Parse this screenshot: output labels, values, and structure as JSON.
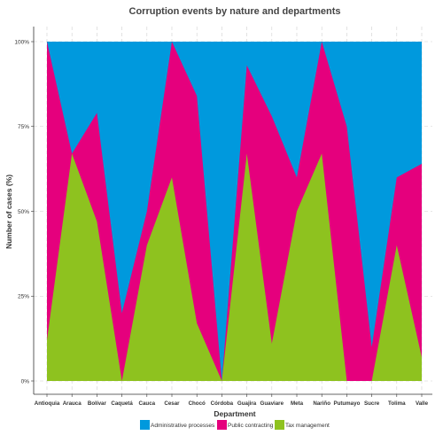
{
  "chart_data": {
    "type": "area",
    "title": "Corruption events by nature and departments",
    "xlabel": "Department",
    "ylabel": "Number of cases (%)",
    "stacked": true,
    "ylim": [
      0,
      100
    ],
    "y_ticks": [
      "0%",
      "25%",
      "50%",
      "75%",
      "100%"
    ],
    "grid": true,
    "legend_position": "bottom",
    "categories": [
      "Antioquia",
      "Arauca",
      "Bolívar",
      "Caquetá",
      "Cauca",
      "Cesar",
      "Chocó",
      "Córdoba",
      "Guajira",
      "Guaviare",
      "Meta",
      "Nariño",
      "Putumayo",
      "Sucre",
      "Tolima",
      "Valle"
    ],
    "series": [
      {
        "name": "Tax management",
        "color": "#8ec21f",
        "values": [
          12,
          67,
          47,
          0,
          40,
          60,
          17,
          0,
          67,
          11,
          50,
          67,
          0,
          0,
          40,
          7
        ]
      },
      {
        "name": "Public contracting",
        "color": "#e5007d",
        "values": [
          88,
          0,
          32,
          20,
          10,
          40,
          67,
          0,
          26,
          67,
          10,
          33,
          75,
          10,
          20,
          57
        ]
      },
      {
        "name": "Administrative processes",
        "color": "#0099dd",
        "values": [
          0,
          33,
          21,
          80,
          50,
          0,
          16,
          100,
          7,
          22,
          40,
          0,
          25,
          90,
          40,
          36
        ]
      }
    ]
  }
}
